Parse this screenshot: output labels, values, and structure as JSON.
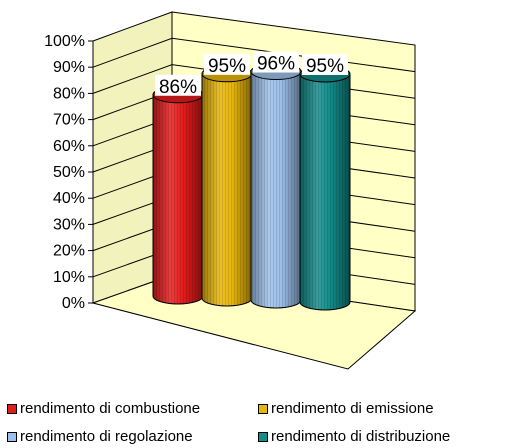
{
  "chart_data": {
    "type": "bar",
    "categories": [
      "rendimento di combustione",
      "rendimento di emissione",
      "rendimento di regolazione",
      "rendimento di distribuzione"
    ],
    "values": [
      86,
      95,
      96,
      95
    ],
    "data_labels": [
      "86%",
      "95%",
      "96%",
      "95%"
    ],
    "y_ticks": [
      "0%",
      "10%",
      "20%",
      "30%",
      "40%",
      "50%",
      "60%",
      "70%",
      "80%",
      "90%",
      "100%"
    ],
    "ylim": [
      0,
      100
    ],
    "grid": true,
    "three_d": true,
    "legend_position": "bottom",
    "colors": {
      "series": [
        "#e51c1c",
        "#e8b60a",
        "#9cc0ea",
        "#138c8a"
      ],
      "wall": "#ffffc6",
      "floor": "#ffffc6"
    }
  }
}
